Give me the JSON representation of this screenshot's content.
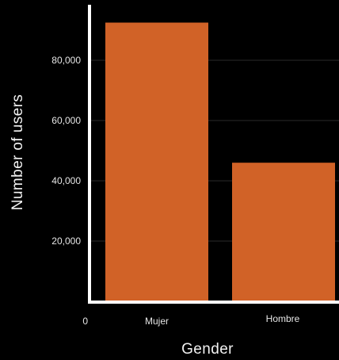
{
  "chart_data": {
    "type": "bar",
    "categories": [
      "Mujer",
      "Hombre"
    ],
    "values": [
      92500,
      46000
    ],
    "xlabel": "Gender",
    "ylabel": "Number of users",
    "ylim": [
      0,
      100000
    ],
    "yticks": [
      0,
      20000,
      40000,
      60000,
      80000
    ],
    "ytick_labels": [
      "0",
      "20,000",
      "40,000",
      "60,000",
      "80,000"
    ],
    "grid": true,
    "legend": "none",
    "colors": {
      "bar": "#D16227",
      "axis": "#FFFFFF",
      "grid": "#2A2A2A",
      "background": "#000000",
      "text": "#E6E6E6"
    }
  }
}
